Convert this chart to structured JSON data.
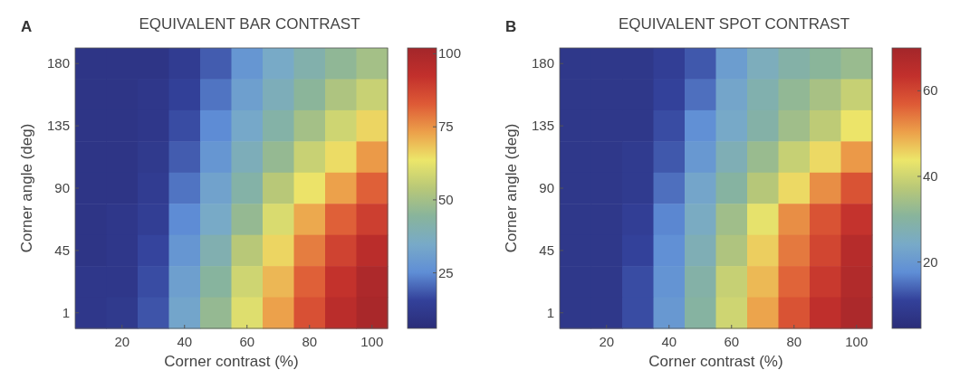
{
  "chart_data": [
    {
      "type": "heatmap",
      "title": "EQUIVALENT BAR CONTRAST",
      "annotations": [
        "A"
      ],
      "xlabel": "Corner contrast (%)",
      "ylabel": "Corner angle (deg)",
      "categories": [
        null,
        "20",
        null,
        "40",
        null,
        "60",
        null,
        "80",
        null,
        "100"
      ],
      "y_categories": [
        "180",
        null,
        "135",
        null,
        "90",
        null,
        "45",
        null,
        "1"
      ],
      "clim": [
        6,
        102
      ],
      "cticks": [
        25,
        50,
        75,
        100
      ],
      "cells": [
        [
          10,
          10,
          10,
          13,
          19,
          28,
          35,
          41,
          46,
          50
        ],
        [
          10,
          10,
          11,
          15,
          22,
          31,
          38,
          45,
          52,
          57
        ],
        [
          10,
          10,
          11,
          17,
          25,
          34,
          42,
          50,
          58,
          66
        ],
        [
          10,
          10,
          12,
          19,
          28,
          38,
          47,
          57,
          65,
          74
        ],
        [
          10,
          10,
          13,
          22,
          32,
          42,
          54,
          64,
          73,
          82
        ],
        [
          10,
          11,
          14,
          25,
          35,
          47,
          60,
          72,
          82,
          89
        ],
        [
          10,
          11,
          16,
          28,
          40,
          54,
          66,
          78,
          88,
          95
        ],
        [
          11,
          11,
          17,
          31,
          44,
          58,
          70,
          82,
          92,
          99
        ],
        [
          11,
          12,
          18,
          33,
          47,
          61,
          73,
          85,
          95,
          100
        ]
      ]
    },
    {
      "type": "heatmap",
      "title": "EQUIVALENT SPOT CONTRAST",
      "annotations": [
        "B"
      ],
      "xlabel": "Corner contrast (%)",
      "ylabel": "Corner angle (deg)",
      "categories": [
        null,
        "20",
        null,
        "40",
        null,
        "60",
        null,
        "80",
        null,
        "100"
      ],
      "y_categories": [
        "180",
        null,
        "135",
        null,
        "90",
        null,
        "45",
        null,
        "1"
      ],
      "clim": [
        4.5,
        70
      ],
      "cticks": [
        20,
        40,
        60
      ],
      "cells": [
        [
          8,
          8,
          8,
          10,
          13,
          21,
          26,
          29,
          31,
          33
        ],
        [
          8,
          8,
          8,
          11,
          15,
          23,
          28,
          32,
          35,
          39
        ],
        [
          8,
          8,
          8,
          12,
          18,
          24,
          29,
          34,
          38,
          44
        ],
        [
          8,
          8,
          9,
          13,
          20,
          27,
          33,
          39,
          45,
          51
        ],
        [
          8,
          8,
          9,
          15,
          23,
          30,
          37,
          45,
          52,
          58
        ],
        [
          8,
          8,
          10,
          17,
          25,
          34,
          43,
          52,
          58,
          63
        ],
        [
          8,
          8,
          11,
          18,
          27,
          36,
          46,
          54,
          60,
          66
        ],
        [
          8,
          8,
          12,
          19,
          29,
          39,
          48,
          56,
          62,
          67
        ],
        [
          8,
          8,
          12,
          20,
          30,
          40,
          50,
          58,
          64,
          68
        ]
      ]
    }
  ]
}
